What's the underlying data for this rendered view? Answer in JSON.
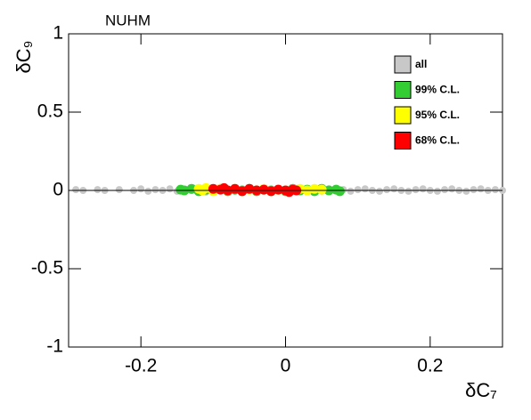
{
  "chart_data": {
    "type": "scatter",
    "title": "NUHM",
    "xlabel": "δC₇",
    "ylabel": "δC₉",
    "xlim": [
      -0.3,
      0.3
    ],
    "ylim": [
      -1,
      1
    ],
    "xticks": [
      -0.2,
      0,
      0.2
    ],
    "yticks": [
      -1,
      -0.5,
      0,
      0.5,
      1
    ],
    "legend": "upper right",
    "series": [
      {
        "name": "all",
        "color": "#c8c8c8",
        "x": [
          -0.29,
          -0.28,
          -0.26,
          -0.25,
          -0.23,
          -0.21,
          -0.2,
          -0.19,
          -0.18,
          -0.17,
          -0.16,
          -0.15,
          -0.14,
          -0.13,
          -0.12,
          -0.11,
          -0.1,
          -0.09,
          -0.08,
          -0.07,
          -0.06,
          -0.05,
          -0.04,
          -0.03,
          -0.02,
          -0.01,
          0,
          0.01,
          0.02,
          0.03,
          0.04,
          0.05,
          0.06,
          0.07,
          0.08,
          0.09,
          0.1,
          0.11,
          0.12,
          0.13,
          0.14,
          0.15,
          0.16,
          0.17,
          0.18,
          0.19,
          0.2,
          0.21,
          0.22,
          0.23,
          0.24,
          0.25,
          0.26,
          0.27,
          0.28,
          0.29,
          0.3
        ],
        "y": [
          0.005,
          0,
          0.005,
          0,
          0.005,
          0,
          0.01,
          -0.005,
          0.005,
          0,
          0.01,
          -0.005,
          0.005,
          0,
          0.005,
          -0.01,
          0.005,
          0,
          0.01,
          -0.005,
          0.005,
          0,
          0.01,
          -0.005,
          0.005,
          0,
          0.005,
          -0.005,
          0.01,
          0,
          0.005,
          -0.005,
          0.01,
          0,
          0.005,
          -0.005,
          0.005,
          0.01,
          0,
          -0.005,
          0.005,
          0.01,
          0,
          -0.005,
          0.005,
          0.01,
          0,
          -0.005,
          0.005,
          0.01,
          0,
          -0.005,
          0.005,
          0.01,
          0,
          0.005,
          0
        ]
      },
      {
        "name": "99% C.L.",
        "color": "#33cc33",
        "x": [
          -0.145,
          -0.14,
          -0.13,
          -0.12,
          -0.11,
          -0.1,
          -0.09,
          -0.08,
          -0.07,
          -0.06,
          -0.05,
          -0.04,
          -0.03,
          -0.02,
          -0.01,
          0,
          0.01,
          0.02,
          0.03,
          0.04,
          0.05,
          0.06,
          0.07,
          0.075
        ],
        "y": [
          0.005,
          0,
          0.01,
          -0.005,
          0.005,
          0,
          0.01,
          -0.005,
          0.005,
          0,
          0.01,
          -0.005,
          0.005,
          0,
          0.005,
          -0.005,
          0.01,
          0,
          0.005,
          -0.005,
          0.01,
          0,
          0.005,
          -0.005
        ]
      },
      {
        "name": "95% C.L.",
        "color": "#ffff00",
        "x": [
          -0.12,
          -0.115,
          -0.11,
          -0.1,
          -0.09,
          -0.08,
          -0.07,
          -0.06,
          -0.05,
          -0.04,
          -0.03,
          -0.02,
          -0.01,
          0,
          0.01,
          0.02,
          0.03,
          0.04,
          0.05
        ],
        "y": [
          0.01,
          0,
          0.015,
          -0.005,
          0.01,
          0,
          0.01,
          -0.005,
          0.005,
          0,
          0.01,
          -0.005,
          0.005,
          0,
          0.005,
          0.01,
          0,
          0.01,
          0.005
        ]
      },
      {
        "name": "68% C.L.",
        "color": "#ff0000",
        "x": [
          -0.1,
          -0.09,
          -0.085,
          -0.08,
          -0.07,
          -0.06,
          -0.05,
          -0.04,
          -0.03,
          -0.02,
          -0.01,
          0,
          0.005,
          0.01,
          0.015
        ],
        "y": [
          0.01,
          0.005,
          0.015,
          0,
          0.01,
          -0.005,
          0.01,
          0,
          0.005,
          -0.005,
          0.005,
          0,
          -0.01,
          0.005,
          0
        ]
      }
    ]
  }
}
